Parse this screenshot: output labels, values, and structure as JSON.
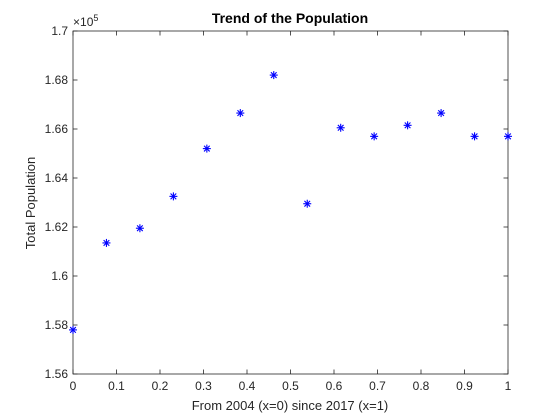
{
  "chart_data": {
    "type": "scatter",
    "title": "Trend of the Population",
    "xlabel": "From 2004 (x=0) since 2017 (x=1)",
    "ylabel": "Total Population",
    "xlim": [
      0,
      1
    ],
    "ylim": [
      1.56,
      1.7
    ],
    "y_multiplier": {
      "base": "10",
      "exponent": "5",
      "times": "×"
    },
    "x_ticks": [
      "0",
      "0.1",
      "0.2",
      "0.3",
      "0.4",
      "0.5",
      "0.6",
      "0.7",
      "0.8",
      "0.9",
      "1"
    ],
    "x_tick_values": [
      0,
      0.1,
      0.2,
      0.3,
      0.4,
      0.5,
      0.6,
      0.7,
      0.8,
      0.9,
      1
    ],
    "y_ticks": [
      "1.56",
      "1.58",
      "1.6",
      "1.62",
      "1.64",
      "1.66",
      "1.68",
      "1.7"
    ],
    "y_tick_values": [
      1.56,
      1.58,
      1.6,
      1.62,
      1.64,
      1.66,
      1.68,
      1.7
    ],
    "grid": false,
    "marker": "asterisk",
    "marker_color": "#0000ff",
    "points": [
      {
        "x": 0.0,
        "y": 1.578
      },
      {
        "x": 0.0769,
        "y": 1.6135
      },
      {
        "x": 0.1538,
        "y": 1.6195
      },
      {
        "x": 0.2308,
        "y": 1.6325
      },
      {
        "x": 0.3077,
        "y": 1.652
      },
      {
        "x": 0.3846,
        "y": 1.6665
      },
      {
        "x": 0.4615,
        "y": 1.682
      },
      {
        "x": 0.5385,
        "y": 1.6295
      },
      {
        "x": 0.6154,
        "y": 1.6605
      },
      {
        "x": 0.6923,
        "y": 1.657
      },
      {
        "x": 0.7692,
        "y": 1.6615
      },
      {
        "x": 0.8462,
        "y": 1.6665
      },
      {
        "x": 0.9231,
        "y": 1.657
      },
      {
        "x": 1.0,
        "y": 1.657
      }
    ]
  }
}
